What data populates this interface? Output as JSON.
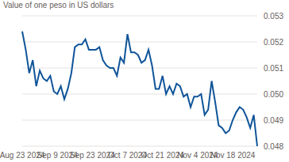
{
  "chart_data": {
    "type": "line",
    "title": "Value of one peso in US dollars",
    "categories": [
      "Aug 23 2024",
      null,
      null,
      null,
      null,
      null,
      null,
      null,
      null,
      null,
      "Sep 9 2024",
      null,
      null,
      null,
      null,
      null,
      null,
      null,
      null,
      null,
      "Sep 23 2024",
      null,
      null,
      null,
      null,
      null,
      null,
      null,
      null,
      null,
      "Oct 7 2024",
      null,
      null,
      null,
      null,
      null,
      null,
      null,
      null,
      null,
      "Oct 21 2024",
      null,
      null,
      null,
      null,
      null,
      null,
      null,
      null,
      null,
      "Nov 4 2024",
      null,
      null,
      null,
      null,
      null,
      null,
      null,
      null,
      null,
      "Nov 18 2024",
      null,
      null,
      null,
      null,
      null,
      null,
      null
    ],
    "values": [
      0.0524,
      0.0517,
      0.0508,
      0.0513,
      0.0503,
      0.0509,
      0.0506,
      0.0505,
      0.0507,
      0.0501,
      0.05,
      0.0503,
      0.0498,
      0.0502,
      0.0508,
      0.0518,
      0.0519,
      0.0519,
      0.0521,
      0.0517,
      0.0517,
      0.0517,
      0.0518,
      0.0513,
      0.0511,
      0.051,
      0.051,
      0.0507,
      0.0514,
      0.0512,
      0.0523,
      0.0516,
      0.0516,
      0.0515,
      0.0512,
      0.0513,
      0.0517,
      0.0511,
      0.0502,
      0.0502,
      0.0507,
      0.05,
      0.0503,
      0.05,
      0.0504,
      0.0503,
      0.0499,
      0.05,
      0.0495,
      0.0499,
      0.0499,
      0.05,
      0.0492,
      0.0494,
      0.0505,
      0.0497,
      0.0488,
      0.0487,
      0.0485,
      0.0486,
      0.049,
      0.0493,
      0.0495,
      0.0494,
      0.0491,
      0.0487,
      0.0492,
      0.048
    ],
    "color": "#0f5499",
    "ylim": [
      0.048,
      0.053
    ],
    "yticks": [
      0.048,
      0.049,
      {
        "value": 0.05,
        "label": "0.050"
      },
      0.051,
      0.052,
      0.053
    ],
    "grid": true
  }
}
